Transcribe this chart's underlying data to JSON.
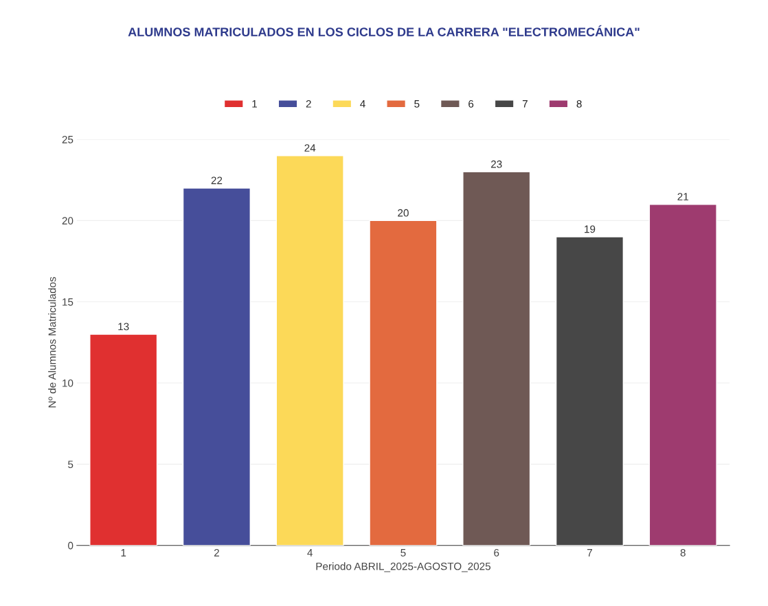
{
  "chart_data": {
    "type": "bar",
    "title": "ALUMNOS MATRICULADOS EN LOS CICLOS DE LA CARRERA \"ELECTROMECÁNICA\"",
    "xlabel": "Periodo ABRIL_2025-AGOSTO_2025",
    "ylabel": "Nº de Alumnos Matriculados",
    "categories": [
      "1",
      "2",
      "4",
      "5",
      "6",
      "7",
      "8"
    ],
    "series": [
      {
        "name": "1",
        "color": "#e03030",
        "values": [
          13,
          null,
          null,
          null,
          null,
          null,
          null
        ]
      },
      {
        "name": "2",
        "color": "#464e9a",
        "values": [
          null,
          22,
          null,
          null,
          null,
          null,
          null
        ]
      },
      {
        "name": "4",
        "color": "#fcd958",
        "values": [
          null,
          null,
          24,
          null,
          null,
          null,
          null
        ]
      },
      {
        "name": "5",
        "color": "#e36a3f",
        "values": [
          null,
          null,
          null,
          20,
          null,
          null,
          null
        ]
      },
      {
        "name": "6",
        "color": "#6f5955",
        "values": [
          null,
          null,
          null,
          null,
          23,
          null,
          null
        ]
      },
      {
        "name": "7",
        "color": "#474747",
        "values": [
          null,
          null,
          null,
          null,
          null,
          19,
          null
        ]
      },
      {
        "name": "8",
        "color": "#9e3b6f",
        "values": [
          null,
          null,
          null,
          null,
          null,
          null,
          21
        ]
      }
    ],
    "ylim": [
      0,
      25
    ],
    "yticks": [
      0,
      5,
      10,
      15,
      20,
      25
    ],
    "grid": "y",
    "legend": "top",
    "data_labels": true
  }
}
